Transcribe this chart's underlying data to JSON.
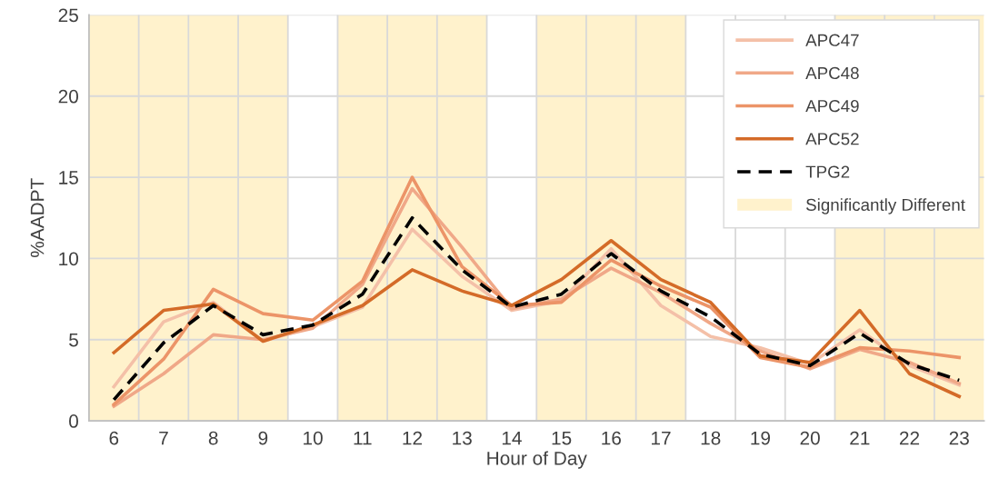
{
  "chart_data": {
    "type": "line",
    "xlabel": "Hour of Day",
    "ylabel": "%AADPT",
    "categories": [
      "6",
      "7",
      "8",
      "9",
      "10",
      "11",
      "12",
      "13",
      "14",
      "15",
      "16",
      "17",
      "18",
      "19",
      "20",
      "21",
      "22",
      "23"
    ],
    "ylim": [
      0,
      25
    ],
    "yticks": [
      0,
      5,
      10,
      15,
      20,
      25
    ],
    "grid": true,
    "legend": "top right",
    "marker": "none",
    "series": [
      {
        "name": "APC47",
        "color": "#f4c0a8",
        "values": [
          2.1,
          6.1,
          7.3,
          4.9,
          5.8,
          7.0,
          11.8,
          8.9,
          6.8,
          7.4,
          10.6,
          7.1,
          5.2,
          4.5,
          3.5,
          5.6,
          3.4,
          2.2
        ]
      },
      {
        "name": "APC48",
        "color": "#f0a888",
        "values": [
          0.9,
          2.9,
          5.3,
          5.0,
          5.7,
          8.4,
          14.3,
          10.7,
          6.9,
          7.5,
          9.4,
          7.9,
          6.0,
          4.3,
          3.2,
          4.4,
          3.6,
          2.3
        ]
      },
      {
        "name": "APC49",
        "color": "#ec9468",
        "values": [
          1.0,
          3.8,
          8.1,
          6.6,
          6.2,
          8.6,
          15.0,
          9.5,
          7.1,
          7.3,
          9.9,
          8.3,
          7.0,
          3.9,
          3.3,
          4.5,
          4.3,
          3.9
        ]
      },
      {
        "name": "APC52",
        "color": "#d46b28",
        "values": [
          4.2,
          6.8,
          7.2,
          4.9,
          5.9,
          7.1,
          9.3,
          8.0,
          7.1,
          8.7,
          11.1,
          8.7,
          7.3,
          4.0,
          3.6,
          6.8,
          2.9,
          1.5
        ]
      },
      {
        "name": "TPG2",
        "color": "#000000",
        "line_style": "dashed",
        "values": [
          1.3,
          4.8,
          7.1,
          5.3,
          5.9,
          7.8,
          12.5,
          9.3,
          7.0,
          7.8,
          10.3,
          8.0,
          6.4,
          4.1,
          3.4,
          5.4,
          3.5,
          2.5
        ]
      },
      {
        "name": "Significantly Different",
        "type": "bar",
        "color": "#fff2cc",
        "values": [
          25,
          25,
          25,
          25,
          null,
          25,
          25,
          25,
          null,
          25,
          25,
          25,
          null,
          null,
          null,
          25,
          25,
          25
        ]
      }
    ]
  }
}
